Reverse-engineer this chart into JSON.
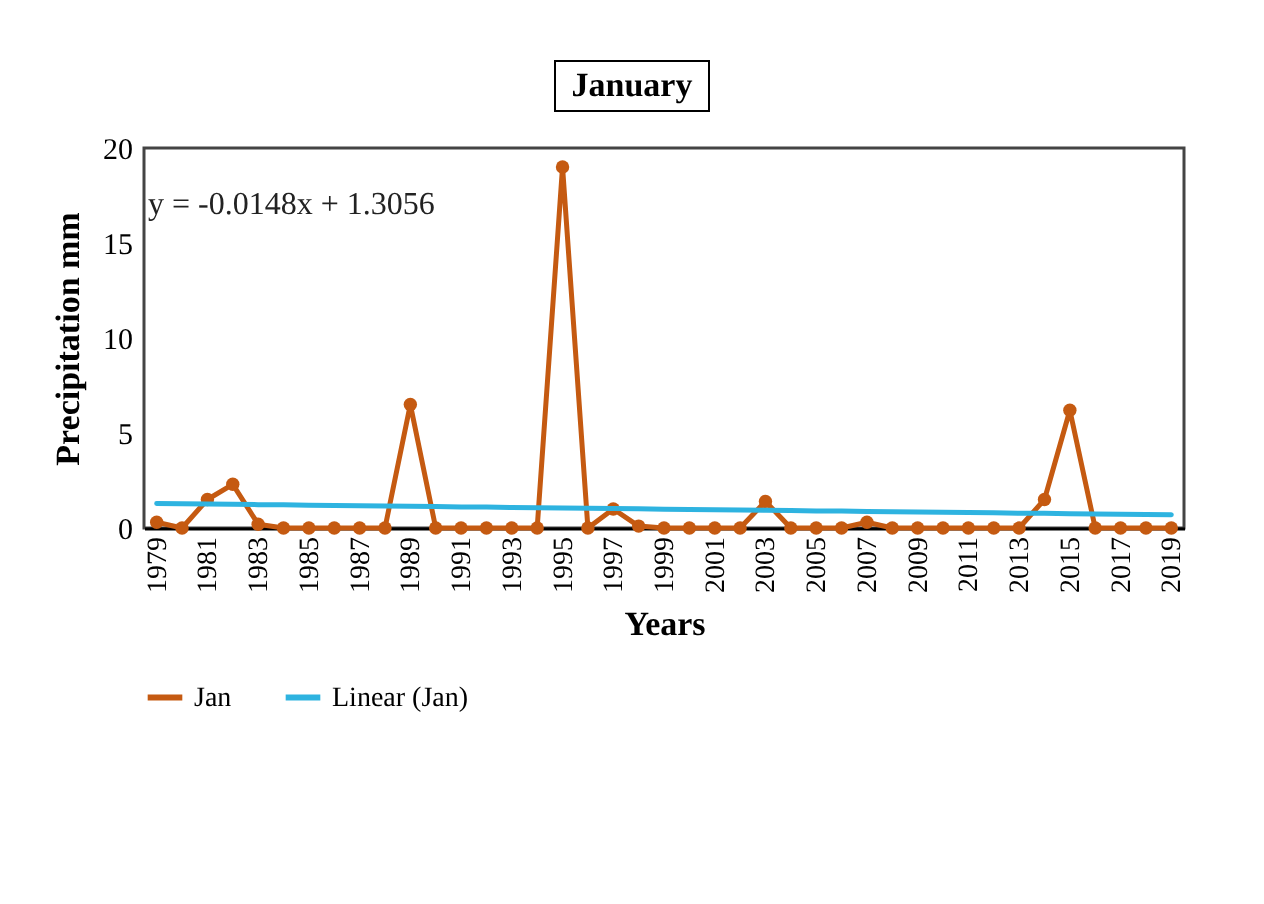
{
  "chart_data": {
    "type": "line",
    "title": "January",
    "xlabel": "Years",
    "ylabel": "Precipitation mm",
    "categories": [
      "1979",
      null,
      "1981",
      null,
      "1983",
      null,
      "1985",
      null,
      "1987",
      null,
      "1989",
      null,
      "1991",
      null,
      "1993",
      null,
      "1995",
      null,
      "1997",
      null,
      "1999",
      null,
      "2001",
      null,
      "2003",
      null,
      "2005",
      null,
      "2007",
      null,
      "2009",
      null,
      "2011",
      null,
      "2013",
      null,
      "2015",
      null,
      "2017",
      null,
      "2019"
    ],
    "series": [
      {
        "name": "Jan",
        "color": "#c55a11",
        "marker": "circle",
        "values": [
          0.3,
          0,
          1.5,
          2.3,
          0.2,
          0,
          0,
          0,
          0,
          0,
          6.5,
          0,
          0,
          0,
          0,
          0,
          19,
          0,
          1.0,
          0.1,
          0,
          0,
          0,
          0,
          1.4,
          0,
          0,
          0,
          0.3,
          0,
          0,
          0,
          0,
          0,
          0,
          1.5,
          6.2,
          0,
          0,
          0,
          0
        ]
      },
      {
        "name": "Linear (Jan)",
        "color": "#2eb3e0",
        "marker": "none",
        "values": [
          1.29,
          1.28,
          1.26,
          1.25,
          1.23,
          1.22,
          1.2,
          1.19,
          1.17,
          1.16,
          1.14,
          1.13,
          1.11,
          1.1,
          1.08,
          1.07,
          1.05,
          1.04,
          1.02,
          1.01,
          0.99,
          0.98,
          0.96,
          0.95,
          0.93,
          0.92,
          0.9,
          0.89,
          0.87,
          0.86,
          0.84,
          0.83,
          0.81,
          0.8,
          0.78,
          0.77,
          0.75,
          0.74,
          0.72,
          0.71,
          0.7
        ]
      }
    ],
    "ylim": [
      0,
      20
    ],
    "yticks": [
      0,
      5,
      10,
      15,
      20
    ],
    "grid": false,
    "legend": "bottom",
    "annotations": [
      "y = -0.0148x + 1.3056"
    ]
  }
}
